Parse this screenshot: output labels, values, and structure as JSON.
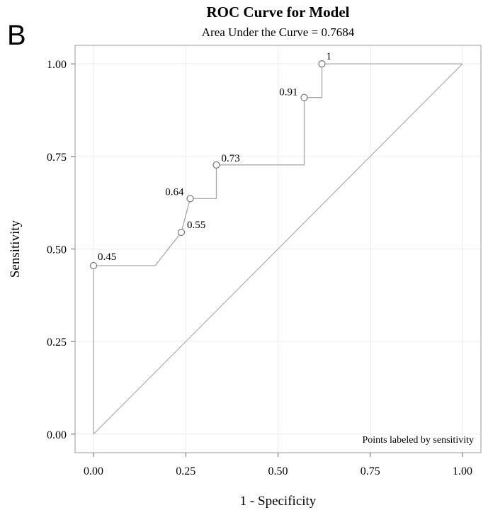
{
  "panel_label": "B",
  "chart_data": {
    "type": "line",
    "title": "ROC Curve for Model",
    "subtitle": "Area Under the Curve = 0.7684",
    "xlabel": "1 - Specificity",
    "ylabel": "Sensitivity",
    "xlim": [
      -0.05,
      1.05
    ],
    "ylim": [
      -0.05,
      1.05
    ],
    "x_ticks": [
      "0.00",
      "0.25",
      "0.50",
      "0.75",
      "1.00"
    ],
    "y_ticks": [
      "0.00",
      "0.25",
      "0.50",
      "0.75",
      "1.00"
    ],
    "grid": true,
    "reference_line": [
      [
        0,
        0
      ],
      [
        1,
        1
      ]
    ],
    "series": [
      {
        "x": [
          0,
          0,
          0.167,
          0.238,
          0.262,
          0.333,
          0.333,
          0.571,
          0.571,
          0.619,
          0.619,
          1.0
        ],
        "y": [
          0,
          0.455,
          0.455,
          0.545,
          0.636,
          0.636,
          0.727,
          0.727,
          0.909,
          0.909,
          1.0,
          1.0
        ]
      }
    ],
    "labeled_points": [
      {
        "x": 0,
        "y": 0.455,
        "label": "0.45"
      },
      {
        "x": 0.238,
        "y": 0.545,
        "label": "0.55"
      },
      {
        "x": 0.262,
        "y": 0.636,
        "label": "0.64"
      },
      {
        "x": 0.333,
        "y": 0.727,
        "label": "0.73"
      },
      {
        "x": 0.571,
        "y": 0.909,
        "label": "0.91"
      },
      {
        "x": 0.619,
        "y": 1.0,
        "label": "1"
      }
    ],
    "annotation": "Points labeled by sensitivity"
  }
}
